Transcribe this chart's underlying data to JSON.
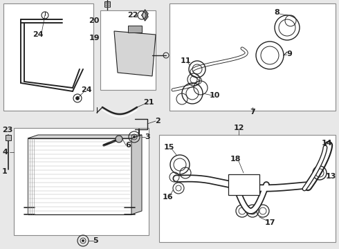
{
  "bg": "#e8e8e8",
  "fg": "#222222",
  "white": "#ffffff",
  "box_stroke": "#888888",
  "figsize": [
    4.9,
    3.6
  ],
  "dpi": 100
}
